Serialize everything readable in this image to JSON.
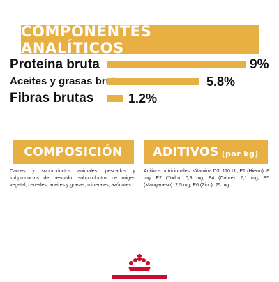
{
  "header": {
    "title": "COMPONENTES ANALÍTICOS"
  },
  "analytics": [
    {
      "label": "Proteína bruta",
      "value": "9%",
      "fraction": 0.9
    },
    {
      "label": "Aceites y grasas brutos",
      "value": "5.8%",
      "fraction": 0.58
    },
    {
      "label": "Fibras brutas",
      "value": "1.2%",
      "fraction": 0.12
    }
  ],
  "composition": {
    "title": "COMPOSICIÓN",
    "text": "Carnes y subproductos animales, pescados y subproductos de pescado, subproductos de origen vegetal, cereales, aceites y grasas, minerales, azúcares."
  },
  "additives": {
    "title": "ADITIVOS",
    "unit": "(por kg)",
    "text": "Aditivos nutricionales: Vitamina D3: 110 UI, E1 (Hierro): 8 mg, E2 (Yodo): 0,3 mg, E4 (Cobre): 2,1 mg, E5 (Manganeso): 2,5 mg, E6 (Zinc): 25 mg."
  },
  "colors": {
    "accent": "#e8b043",
    "brand_red": "#c8102e"
  },
  "logo": {
    "icon": "crown-icon"
  }
}
